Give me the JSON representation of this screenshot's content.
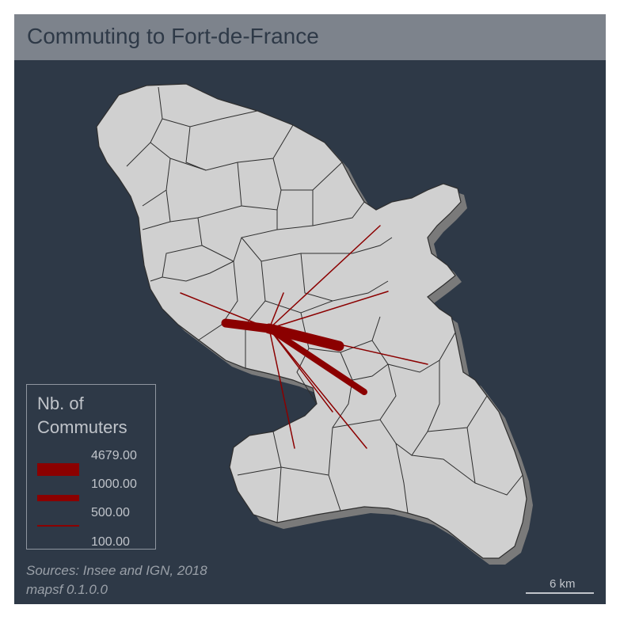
{
  "title": "Commuting to Fort-de-France",
  "legend": {
    "title_line1": "Nb. of",
    "title_line2": "Commuters",
    "values": [
      "4679.00",
      "1000.00",
      "500.00",
      "100.00"
    ]
  },
  "credits": {
    "line1": "Sources: Insee and IGN, 2018",
    "line2": "mapsf 0.1.0.0"
  },
  "scale_bar": {
    "label": "6 km"
  },
  "colors": {
    "background": "#2e3947",
    "title_bar": "#7d838c",
    "land": "#d0d0d0",
    "shadow": "#7a7a7a",
    "flow": "#8b0000",
    "borders": "#2e2e2e"
  },
  "flows": {
    "destination": "Fort-de-France",
    "values": [
      4679,
      1000,
      500,
      100
    ]
  }
}
